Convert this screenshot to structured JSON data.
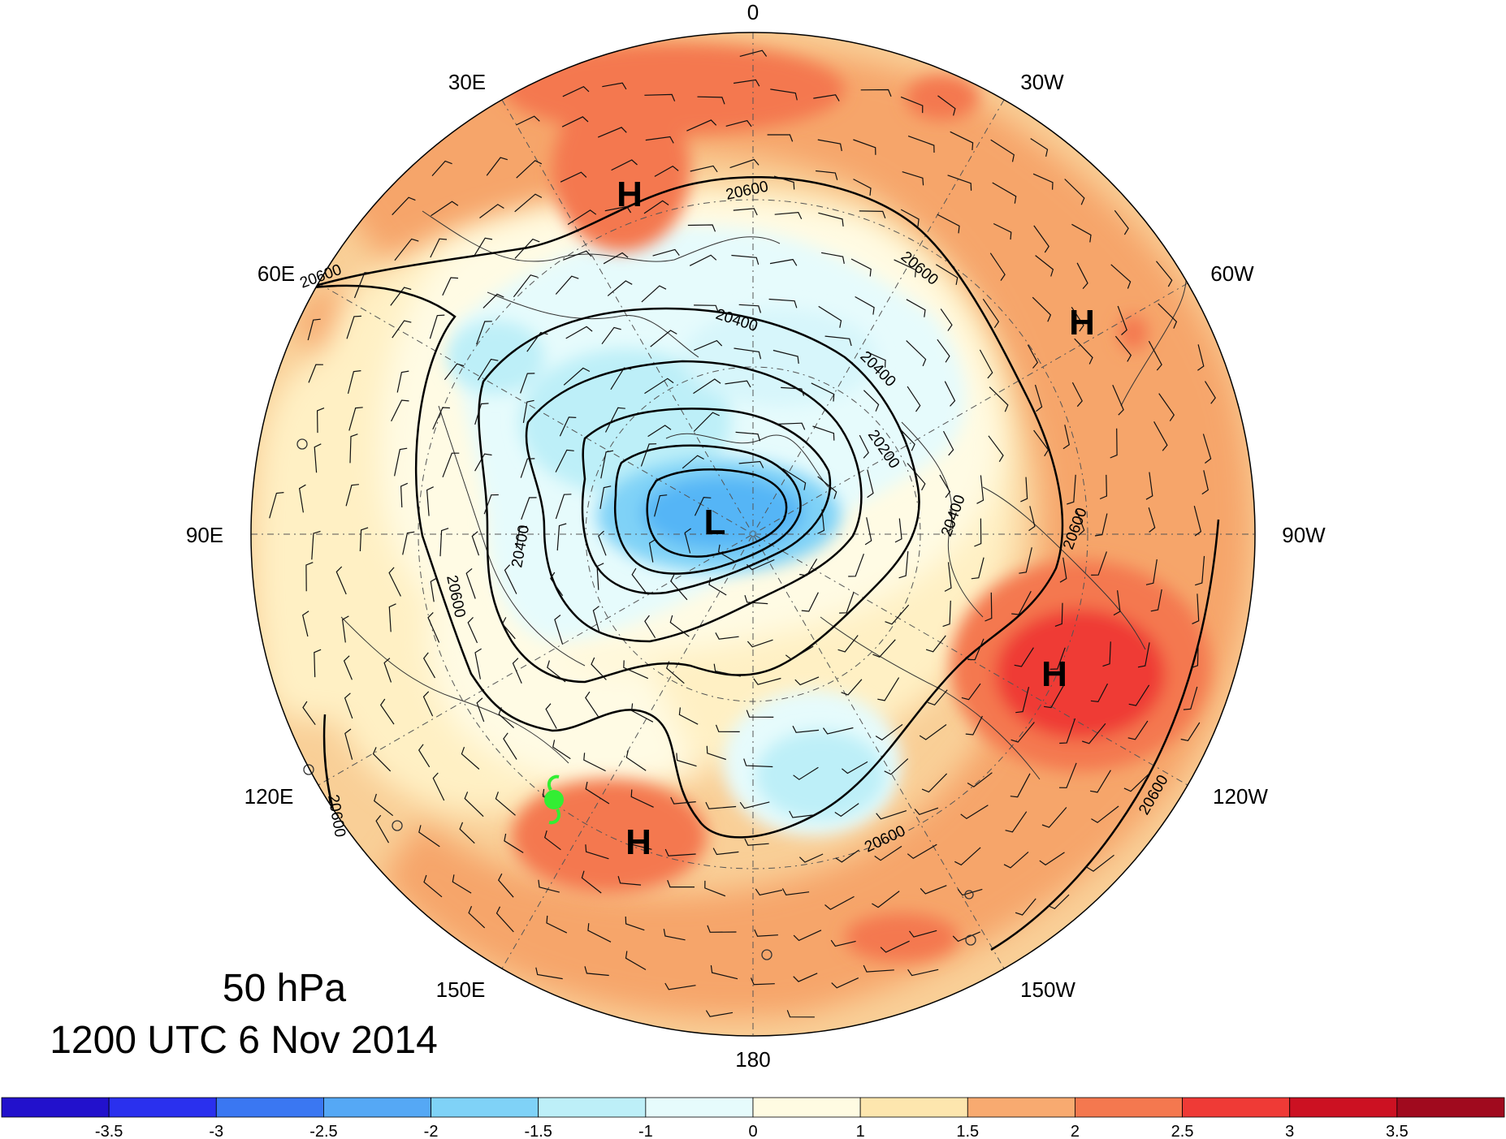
{
  "map": {
    "level": "50 hPa",
    "time": "1200 UTC 6 Nov 2014",
    "longitude_labels": [
      "0",
      "30W",
      "60W",
      "90W",
      "120W",
      "150W",
      "180",
      "150E",
      "120E",
      "90E",
      "60E",
      "30E"
    ],
    "contour_labels": [
      "20600",
      "20600",
      "20600",
      "20400",
      "20400",
      "20200",
      "20400",
      "20600",
      "20400",
      "20600",
      "20600",
      "20600",
      "20600"
    ],
    "pressure_centers": [
      "H",
      "H",
      "H",
      "H",
      "L"
    ],
    "colors": {
      "frame": "#000000",
      "contour": "#000000",
      "barb": "#111111",
      "tropical_cyclone_symbol": "#33ee33"
    }
  },
  "colorbar": {
    "labels": [
      "-3.5",
      "-3",
      "-2.5",
      "-2",
      "-1.5",
      "-1",
      "0",
      "1",
      "1.5",
      "2",
      "2.5",
      "3",
      "3.5"
    ],
    "colors": [
      "#2211cc",
      "#2a30ee",
      "#3a77f2",
      "#55a8f5",
      "#7fd2f7",
      "#bdeff8",
      "#e6fbfc",
      "#fffbe2",
      "#fde6ae",
      "#f8aa70",
      "#f4784f",
      "#ef3a36",
      "#cc1122",
      "#a00a1e"
    ]
  }
}
